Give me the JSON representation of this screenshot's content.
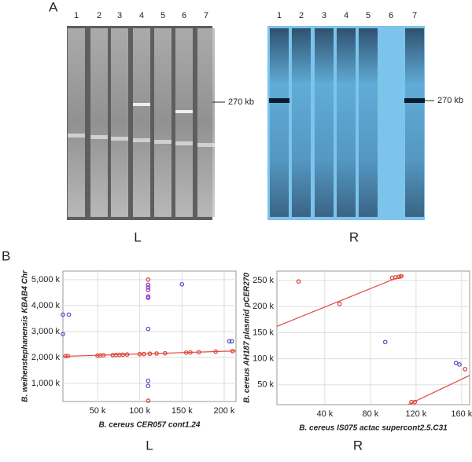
{
  "panel_a": {
    "label": "A",
    "left_lanes": [
      "1",
      "2",
      "3",
      "4",
      "5",
      "6",
      "7"
    ],
    "right_lanes": [
      "1",
      "2",
      "3",
      "4",
      "5",
      "6",
      "7"
    ],
    "left_marker": "270 kb",
    "right_marker": "270 kb",
    "left_caption": "L",
    "right_caption": "R"
  },
  "panel_b": {
    "label": "B",
    "left_caption": "L",
    "right_caption": "R"
  },
  "chart_data": [
    {
      "type": "scatter",
      "grid": true,
      "xlabel": "B. cereus CER057 cont1.24",
      "ylabel": "B. weihenstephanensis KBAB4 Chr",
      "xlim": [
        9,
        214
      ],
      "ylim": [
        300,
        5330
      ],
      "xticks": [
        {
          "value": 50,
          "label": "50 k"
        },
        {
          "value": 100,
          "label": "100 k"
        },
        {
          "value": 150,
          "label": "150 k"
        },
        {
          "value": 200,
          "label": "200 k"
        }
      ],
      "yticks": [
        {
          "value": 1000,
          "label": "1,000 k"
        },
        {
          "value": 2000,
          "label": "2,000 k"
        },
        {
          "value": 3000,
          "label": "3,000 k"
        },
        {
          "value": 4000,
          "label": "4,000 k"
        },
        {
          "value": 5000,
          "label": "5,000 k"
        }
      ],
      "series": [
        {
          "color": "#e0483e",
          "style": "line",
          "x": [
            9,
            214
          ],
          "values": [
            2040,
            2250
          ]
        },
        {
          "color": "#e0483e",
          "style": "points",
          "x": [
            12,
            15,
            50,
            53,
            57,
            68,
            72,
            76,
            80,
            85,
            100,
            105,
            112,
            120,
            130,
            155,
            160,
            170,
            190,
            210,
            110,
            110
          ],
          "values": [
            2050,
            2055,
            2070,
            2075,
            2080,
            2090,
            2095,
            2100,
            2105,
            2110,
            2125,
            2130,
            2140,
            2150,
            2160,
            2185,
            2190,
            2200,
            2225,
            2245,
            5000,
            330
          ]
        },
        {
          "color": "#9a3cc8",
          "style": "points",
          "x": [
            110,
            110,
            110,
            110,
            110
          ],
          "values": [
            4800,
            4700,
            4600,
            4350,
            4300
          ]
        },
        {
          "color": "#5a5ad2",
          "style": "points",
          "x": [
            9,
            16,
            9,
            110,
            110,
            110,
            150,
            206,
            209
          ],
          "values": [
            3650,
            3650,
            2900,
            3100,
            1100,
            900,
            4820,
            2620,
            2620
          ]
        }
      ]
    },
    {
      "type": "scatter",
      "grid": true,
      "xlabel": "B. cereus IS075 actac supercont2.5.C31",
      "ylabel": "B. cereus AH187 plasmid pCER270",
      "xlim": [
        -2,
        167
      ],
      "ylim": [
        12,
        268
      ],
      "xticks": [
        {
          "value": 40,
          "label": "40 k"
        },
        {
          "value": 80,
          "label": "80 k"
        },
        {
          "value": 120,
          "label": "120 k"
        },
        {
          "value": 160,
          "label": "160 k"
        }
      ],
      "yticks": [
        {
          "value": 50,
          "label": "50 k"
        },
        {
          "value": 100,
          "label": "100 k"
        },
        {
          "value": 150,
          "label": "150 k"
        },
        {
          "value": 200,
          "label": "200 k"
        },
        {
          "value": 250,
          "label": "250 k"
        }
      ],
      "series": [
        {
          "color": "#e0483e",
          "style": "line",
          "x": [
            -2,
            109
          ],
          "values": [
            162,
            260
          ]
        },
        {
          "color": "#e0483e",
          "style": "line",
          "x": [
            113,
            167
          ],
          "values": [
            12,
            68
          ]
        },
        {
          "color": "#e0483e",
          "style": "points",
          "x": [
            17,
            53,
            99,
            102,
            105,
            107,
            163,
            116,
            119
          ],
          "values": [
            248,
            205,
            255,
            256,
            257,
            258,
            80,
            17,
            17
          ]
        },
        {
          "color": "#5a5ad2",
          "style": "points",
          "x": [
            93,
            155,
            158
          ],
          "values": [
            132,
            92,
            89
          ]
        }
      ]
    }
  ]
}
